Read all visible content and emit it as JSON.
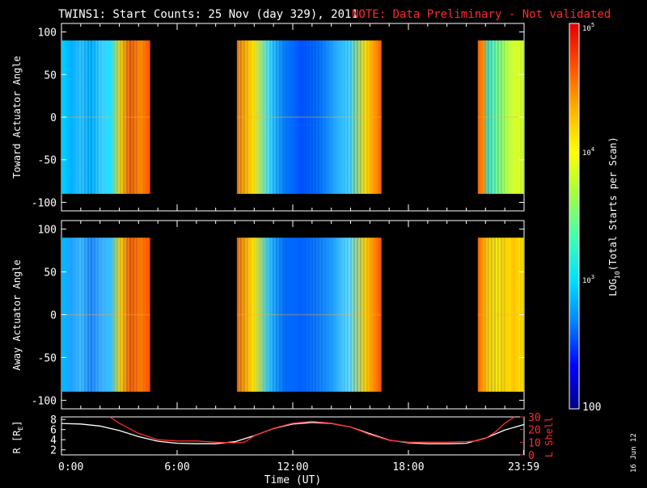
{
  "header": {
    "title": "TWINS1: Start Counts: 25 Nov (day 329), 2011",
    "note": "NOTE: Data Preliminary - Not validated",
    "note_color": "#ff2a2a"
  },
  "footer": {
    "date_stamp": "16 Jun 12"
  },
  "chart_data": [
    {
      "type": "heatmap",
      "ylabel": "Toward Actuator Angle",
      "ylim": [
        -110,
        110
      ],
      "yticks": [
        100,
        50,
        0,
        -50,
        -100
      ],
      "xlim": [
        0,
        24
      ],
      "data_y_range": [
        -90,
        90
      ],
      "segments": [
        {
          "start_hr": 0.0,
          "end_hr": 4.6
        },
        {
          "start_hr": 9.1,
          "end_hr": 16.6
        },
        {
          "start_hr": 21.6,
          "end_hr": 24.0
        }
      ]
    },
    {
      "type": "heatmap",
      "ylabel": "Away Actuator Angle",
      "ylim": [
        -110,
        110
      ],
      "yticks": [
        100,
        50,
        0,
        -50,
        -100
      ],
      "xlim": [
        0,
        24
      ],
      "data_y_range": [
        -90,
        90
      ],
      "segments": [
        {
          "start_hr": 0.0,
          "end_hr": 4.6
        },
        {
          "start_hr": 9.1,
          "end_hr": 16.6
        },
        {
          "start_hr": 21.6,
          "end_hr": 24.0
        }
      ]
    },
    {
      "type": "line",
      "xlabel": "Time (UT)",
      "xticks": [
        "0:00",
        "6:00",
        "12:00",
        "18:00",
        "23:59"
      ],
      "xtick_hours": [
        0,
        6,
        12,
        18,
        23.98
      ],
      "left_axis": {
        "label_prefix": "R [R",
        "label_sub": "E",
        "label_suffix": "]",
        "ylim": [
          1,
          8.5
        ],
        "ticks": [
          2,
          4,
          6,
          8
        ]
      },
      "right_axis": {
        "label": "L Shell",
        "ylim": [
          0,
          30
        ],
        "ticks": [
          0,
          10,
          20,
          30
        ],
        "color": "#ff2a2a"
      },
      "series": [
        {
          "axis": "left",
          "color": "#ffffff",
          "x": [
            0,
            1,
            2,
            3,
            4,
            5,
            6,
            7,
            8,
            9,
            10,
            11,
            12,
            13,
            14,
            15,
            16,
            17,
            18,
            19,
            20,
            21,
            22,
            23,
            24
          ],
          "y": [
            7.2,
            7.1,
            6.7,
            5.8,
            4.6,
            3.7,
            3.3,
            3.2,
            3.2,
            3.6,
            4.8,
            6.2,
            7.1,
            7.4,
            7.2,
            6.5,
            5.2,
            3.9,
            3.4,
            3.2,
            3.2,
            3.3,
            4.3,
            5.9,
            7.0
          ]
        },
        {
          "axis": "right",
          "color": "#ff2a2a",
          "x": [
            2.5,
            3,
            4,
            5,
            6,
            7,
            8,
            9,
            9.5,
            10,
            11,
            12,
            13,
            14,
            15,
            16,
            17,
            18,
            19,
            20,
            21,
            21.5,
            22,
            22.5,
            23,
            23.5
          ],
          "y": [
            30,
            25,
            17,
            12,
            11,
            11,
            10,
            9.5,
            10,
            15,
            21,
            25,
            26.5,
            25,
            22,
            16,
            11.5,
            10,
            10,
            10,
            10.5,
            11,
            13,
            18,
            25,
            30
          ]
        }
      ]
    }
  ],
  "colorbar": {
    "label_log": "LOG",
    "label_sub": "10",
    "label_rest": "(Total Starts per Scan)",
    "tick_top_base": "10",
    "tick_top_exp": "5",
    "tick_mid_base": "10",
    "tick_mid_exp": "4",
    "tick_low_base": "10",
    "tick_low_exp": "3",
    "tick_bottom": "100",
    "range_log": [
      2,
      5
    ],
    "colors": [
      "#000080",
      "#0000ff",
      "#0080ff",
      "#00e0ff",
      "#40ffb0",
      "#a0ff40",
      "#ffff00",
      "#ffb000",
      "#ff5000",
      "#e00000"
    ]
  }
}
